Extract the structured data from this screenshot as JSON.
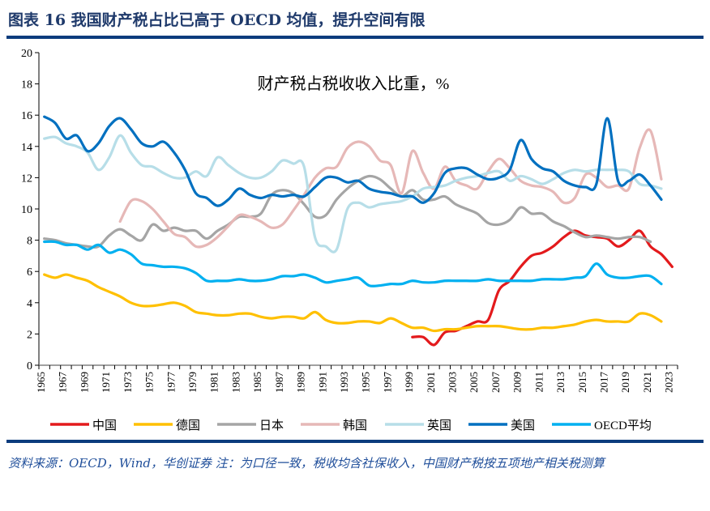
{
  "figure": {
    "title": "图表 16   我国财产税占比已高于 OECD 均值，提升空间有限",
    "source": "资料来源：OECD，Wind，华创证券   注：为口径一致，税收均含社保收入，中国财产税按五项地产相关税测算"
  },
  "chart_data": {
    "type": "line",
    "title": "财产税占税收收入比重，%",
    "xlabel": "",
    "ylabel": "",
    "ylim": [
      0,
      20
    ],
    "yticks": [
      0,
      2,
      4,
      6,
      8,
      10,
      12,
      14,
      16,
      18,
      20
    ],
    "xlim": [
      1965,
      2023
    ],
    "xtick_labels": [
      "1965",
      "1967",
      "1969",
      "1971",
      "1973",
      "1975",
      "1977",
      "1979",
      "1981",
      "1983",
      "1985",
      "1987",
      "1989",
      "1991",
      "1993",
      "1995",
      "1997",
      "1999",
      "2001",
      "2003",
      "2005",
      "2007",
      "2009",
      "2011",
      "2013",
      "2015",
      "2017",
      "2019",
      "2021",
      "2023"
    ],
    "grid": false,
    "legend": "bottom",
    "series": [
      {
        "name": "中国",
        "color": "#E31A1C",
        "start": 1999,
        "values": [
          1.8,
          1.8,
          1.3,
          2.1,
          2.2,
          2.5,
          2.8,
          2.9,
          4.8,
          5.4,
          6.3,
          7.0,
          7.2,
          7.6,
          8.2,
          8.6,
          8.3,
          8.2,
          8.1,
          7.6,
          8.0,
          8.6,
          7.6,
          7.1,
          6.3
        ]
      },
      {
        "name": "德国",
        "color": "#FFC000",
        "start": 1965,
        "values": [
          5.8,
          5.6,
          5.8,
          5.6,
          5.4,
          5.0,
          4.7,
          4.4,
          4.0,
          3.8,
          3.8,
          3.9,
          4.0,
          3.8,
          3.4,
          3.3,
          3.2,
          3.2,
          3.3,
          3.3,
          3.1,
          3.0,
          3.1,
          3.1,
          3.0,
          3.4,
          2.9,
          2.7,
          2.7,
          2.8,
          2.8,
          2.7,
          3.0,
          2.7,
          2.4,
          2.4,
          2.2,
          2.3,
          2.3,
          2.4,
          2.5,
          2.5,
          2.5,
          2.4,
          2.3,
          2.3,
          2.4,
          2.4,
          2.5,
          2.6,
          2.8,
          2.9,
          2.8,
          2.8,
          2.8,
          3.3,
          3.2,
          2.8
        ]
      },
      {
        "name": "日本",
        "color": "#A5A5A5",
        "start": 1965,
        "values": [
          8.1,
          8.0,
          7.8,
          7.7,
          7.6,
          7.6,
          8.3,
          8.7,
          8.3,
          8.0,
          9.0,
          8.6,
          8.8,
          8.6,
          8.6,
          8.1,
          8.6,
          9.0,
          9.5,
          9.5,
          9.7,
          10.9,
          11.2,
          11.0,
          10.3,
          9.5,
          9.6,
          10.6,
          11.3,
          11.8,
          12.1,
          11.9,
          11.3,
          10.8,
          11.2,
          10.6,
          10.6,
          10.8,
          10.3,
          10.0,
          9.7,
          9.1,
          9.0,
          9.3,
          10.1,
          9.7,
          9.7,
          9.2,
          8.9,
          8.5,
          8.2,
          8.3,
          8.2,
          8.1,
          8.2,
          8.2,
          7.9
        ]
      },
      {
        "name": "韩国",
        "color": "#E6B8B7",
        "start": 1972,
        "values": [
          9.2,
          10.5,
          10.5,
          10.0,
          9.2,
          8.4,
          8.2,
          7.6,
          7.7,
          8.2,
          8.9,
          9.6,
          9.5,
          9.2,
          8.8,
          9.0,
          9.9,
          10.9,
          12.0,
          12.6,
          12.7,
          13.9,
          14.3,
          14.0,
          13.1,
          12.8,
          11.0,
          13.7,
          12.3,
          11.3,
          12.7,
          11.8,
          11.5,
          11.3,
          12.4,
          13.2,
          12.6,
          11.8,
          11.5,
          11.4,
          11.1,
          10.4,
          10.7,
          12.2,
          12.0,
          11.4,
          11.5,
          11.3,
          13.9,
          15.0,
          11.9
        ]
      },
      {
        "name": "英国",
        "color": "#B7DEE8",
        "start": 1965,
        "values": [
          14.5,
          14.6,
          14.2,
          14.0,
          13.6,
          12.5,
          13.3,
          14.7,
          13.6,
          12.8,
          12.7,
          12.3,
          12.0,
          12.0,
          12.4,
          12.1,
          13.3,
          12.8,
          12.3,
          12.0,
          12.0,
          12.4,
          13.1,
          12.9,
          12.7,
          8.2,
          7.6,
          7.4,
          10.0,
          10.4,
          10.1,
          10.3,
          10.4,
          10.5,
          10.8,
          11.3,
          11.4,
          11.5,
          11.8,
          12.0,
          12.1,
          12.3,
          12.4,
          11.8,
          12.1,
          11.9,
          11.6,
          11.9,
          12.3,
          12.5,
          12.4,
          12.5,
          12.5,
          12.5,
          12.4,
          11.6,
          11.5,
          11.3
        ]
      },
      {
        "name": "美国",
        "color": "#0070C0",
        "start": 1965,
        "values": [
          15.9,
          15.5,
          14.5,
          14.7,
          13.7,
          14.2,
          15.3,
          15.8,
          15.1,
          14.2,
          14.0,
          14.3,
          13.6,
          12.5,
          11.0,
          10.7,
          10.2,
          10.6,
          11.3,
          10.9,
          10.7,
          10.9,
          10.8,
          10.9,
          10.8,
          11.4,
          12.0,
          12.0,
          11.7,
          11.8,
          11.3,
          11.1,
          11.0,
          10.8,
          10.8,
          10.4,
          11.0,
          12.3,
          12.6,
          12.6,
          12.2,
          11.9,
          12.0,
          12.5,
          14.4,
          13.2,
          12.6,
          12.4,
          11.8,
          11.5,
          11.4,
          11.6,
          15.8,
          11.8,
          11.8,
          12.2,
          11.5,
          10.6
        ]
      },
      {
        "name": "OECD平均",
        "color": "#00B0F0",
        "start": 1965,
        "values": [
          7.9,
          7.9,
          7.7,
          7.7,
          7.4,
          7.7,
          7.2,
          7.4,
          7.1,
          6.5,
          6.4,
          6.3,
          6.3,
          6.2,
          5.9,
          5.4,
          5.4,
          5.4,
          5.5,
          5.4,
          5.4,
          5.5,
          5.7,
          5.7,
          5.8,
          5.6,
          5.3,
          5.4,
          5.5,
          5.6,
          5.1,
          5.1,
          5.2,
          5.2,
          5.4,
          5.3,
          5.3,
          5.4,
          5.4,
          5.4,
          5.4,
          5.5,
          5.4,
          5.4,
          5.4,
          5.4,
          5.5,
          5.5,
          5.5,
          5.6,
          5.7,
          6.5,
          5.8,
          5.6,
          5.6,
          5.7,
          5.7,
          5.2
        ]
      }
    ]
  }
}
